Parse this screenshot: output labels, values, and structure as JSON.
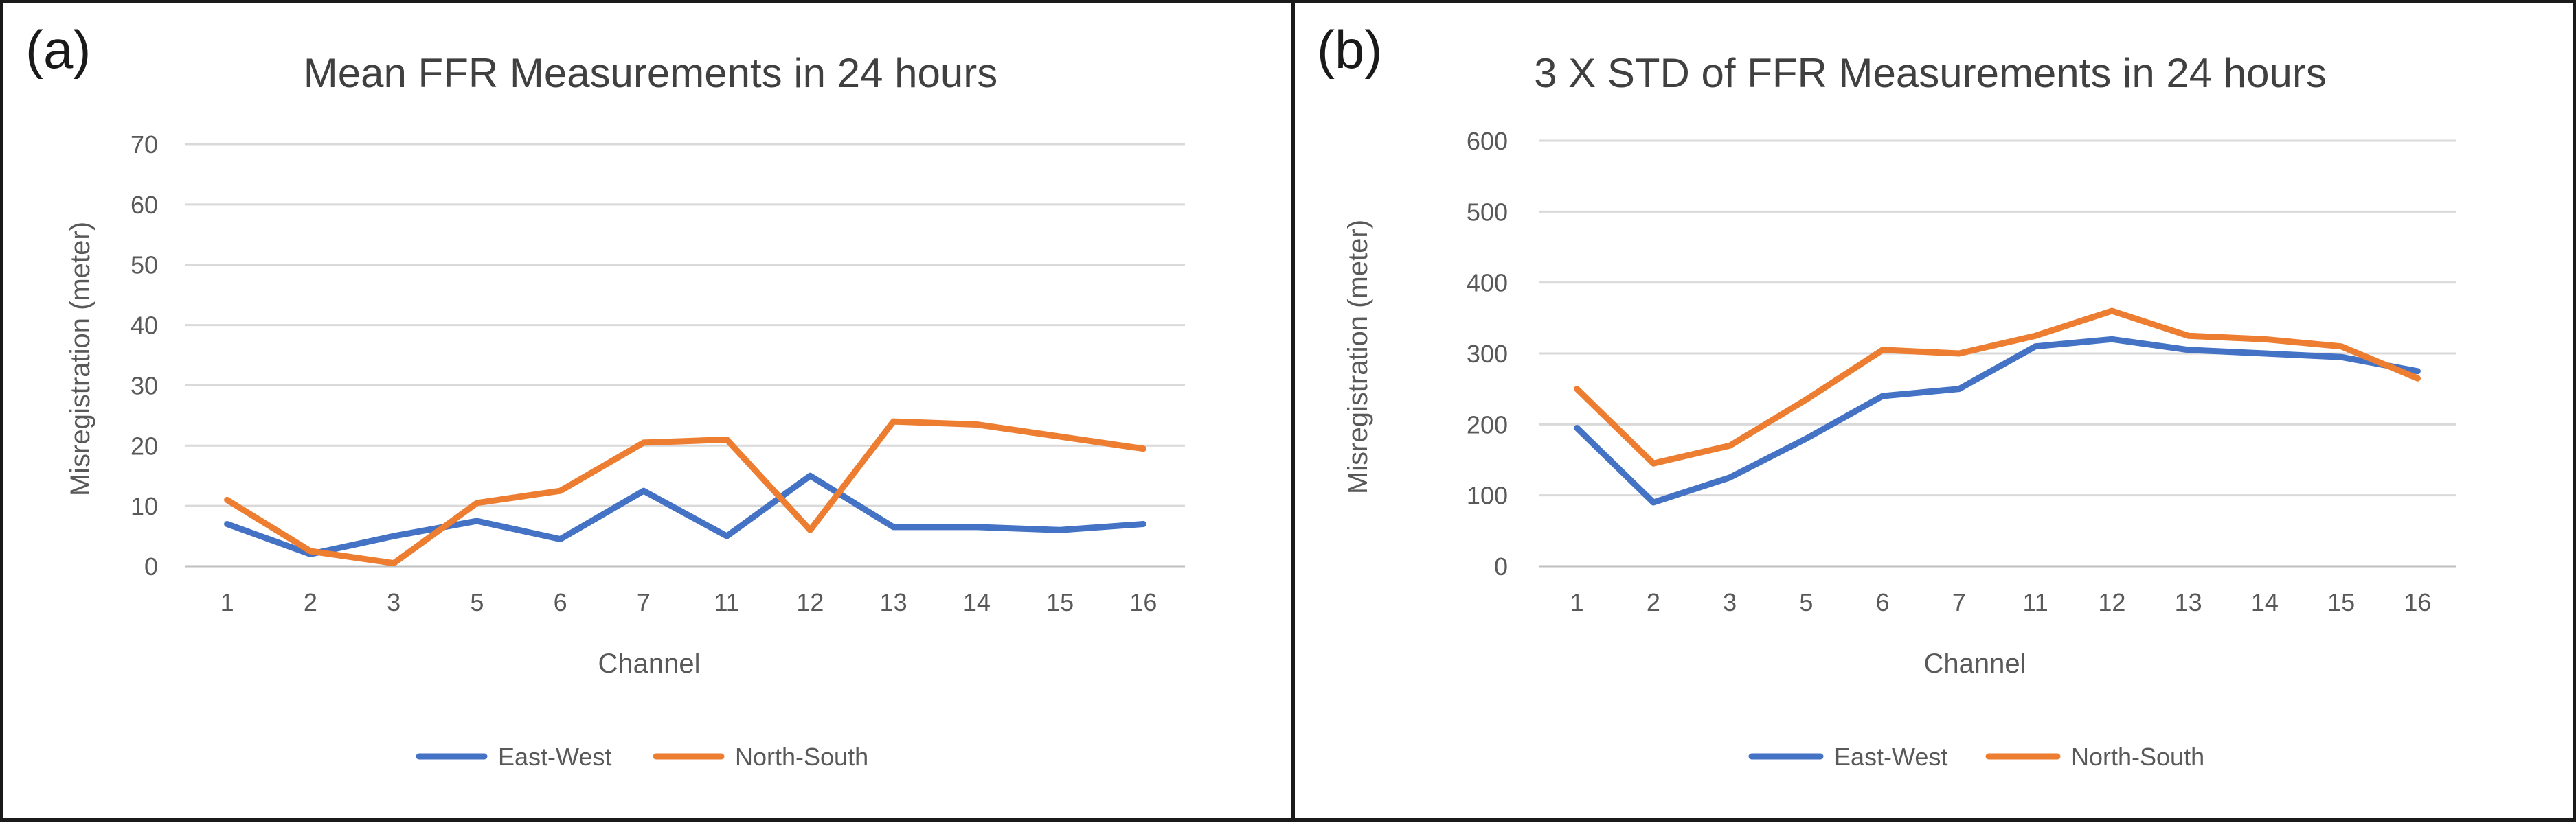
{
  "charts": [
    {
      "panel_label": "(a)",
      "title": "Mean FFR Measurements in 24 hours",
      "xlabel": "Channel",
      "ylabel": "Misregistration (meter)",
      "legend": [
        "East-West",
        "North-South"
      ]
    },
    {
      "panel_label": "(b)",
      "title": "3 X STD of FFR Measurements in 24 hours",
      "xlabel": "Channel",
      "ylabel": "Misregistration (meter)",
      "legend": [
        "East-West",
        "North-South"
      ]
    }
  ],
  "colors": {
    "east_west": "#4472c4",
    "north_south": "#ed7d31",
    "grid": "#d9d9d9",
    "axis_text": "#595959"
  },
  "chart_data": [
    {
      "type": "line",
      "title": "Mean FFR Measurements in 24 hours",
      "xlabel": "Channel",
      "ylabel": "Misregistration (meter)",
      "categories": [
        "1",
        "2",
        "3",
        "5",
        "6",
        "7",
        "11",
        "12",
        "13",
        "14",
        "15",
        "16"
      ],
      "ylim": [
        0,
        70
      ],
      "yticks": [
        0,
        10,
        20,
        30,
        40,
        50,
        60,
        70
      ],
      "grid": true,
      "legend_position": "bottom",
      "series": [
        {
          "name": "East-West",
          "color": "#4472c4",
          "values": [
            7,
            2,
            5,
            7.5,
            4.5,
            12.5,
            5,
            15,
            6.5,
            6.5,
            6,
            7
          ]
        },
        {
          "name": "North-South",
          "color": "#ed7d31",
          "values": [
            11,
            2.5,
            0.5,
            10.5,
            12.5,
            20.5,
            21,
            6,
            24,
            23.5,
            21.5,
            19.5
          ]
        }
      ]
    },
    {
      "type": "line",
      "title": "3 X STD of FFR Measurements in 24 hours",
      "xlabel": "Channel",
      "ylabel": "Misregistration (meter)",
      "categories": [
        "1",
        "2",
        "3",
        "5",
        "6",
        "7",
        "11",
        "12",
        "13",
        "14",
        "15",
        "16"
      ],
      "ylim": [
        0,
        600
      ],
      "yticks": [
        0,
        100,
        200,
        300,
        400,
        500,
        600
      ],
      "grid": true,
      "legend_position": "bottom",
      "series": [
        {
          "name": "East-West",
          "color": "#4472c4",
          "values": [
            195,
            90,
            125,
            180,
            240,
            250,
            310,
            320,
            305,
            300,
            295,
            275
          ]
        },
        {
          "name": "North-South",
          "color": "#ed7d31",
          "values": [
            250,
            145,
            170,
            235,
            305,
            300,
            325,
            360,
            325,
            320,
            310,
            265
          ]
        }
      ]
    }
  ]
}
